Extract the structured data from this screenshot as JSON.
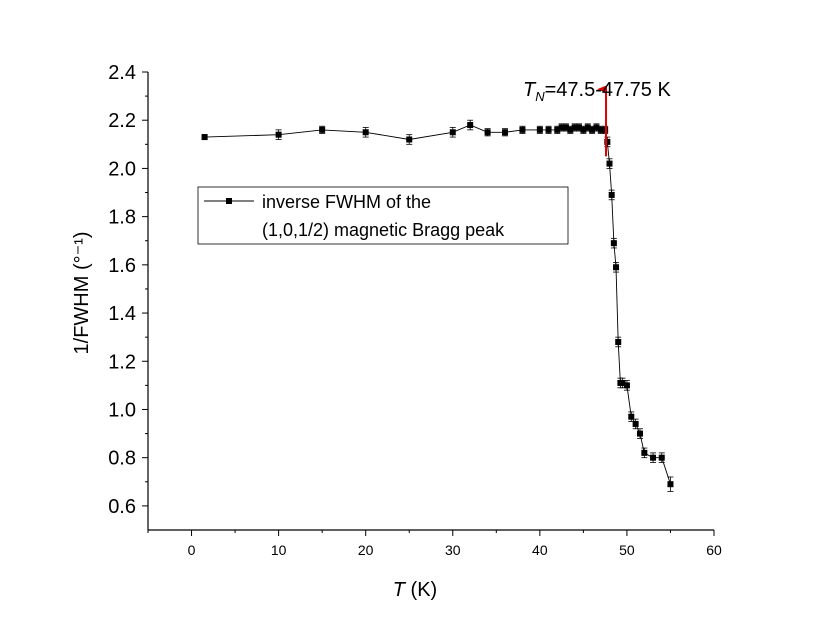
{
  "chart_data": {
    "type": "scatter",
    "xlabel": "T",
    "xlabel_unit": "(K)",
    "ylabel": "1/FWHM (°⁻¹)",
    "xlim": [
      -5,
      60
    ],
    "ylim": [
      0.5,
      2.4
    ],
    "xticks": [
      "0",
      "10",
      "20",
      "30",
      "40",
      "50",
      "60"
    ],
    "yticks": [
      "0.6",
      "0.8",
      "1.0",
      "1.2",
      "1.4",
      "1.6",
      "1.8",
      "2.0",
      "2.2",
      "2.4"
    ],
    "grid": false,
    "legend_position": "upper-left",
    "annotation": {
      "symbol": "T",
      "subscript": "N",
      "text": "=47.5-47.75 K",
      "arrow_color": "#e00000",
      "arrow_x": 47.6,
      "arrow_y_from": 2.05,
      "arrow_y_to": 2.37
    },
    "series": [
      {
        "name_line1": "inverse FWHM of the",
        "name_line2": "(1,0,1/2) magnetic Bragg peak",
        "color": "#000000",
        "marker": "square",
        "x": [
          1.5,
          10,
          15,
          20,
          25,
          30,
          32,
          34,
          36,
          38,
          40,
          41,
          42,
          42.5,
          43,
          43.5,
          44,
          44.5,
          45,
          45.5,
          46,
          46.5,
          47,
          47.5,
          47.75,
          48,
          48.25,
          48.5,
          48.75,
          49,
          49.25,
          49.5,
          50,
          50.5,
          51,
          51.5,
          52,
          53,
          54,
          55
        ],
        "y": [
          2.13,
          2.14,
          2.16,
          2.15,
          2.12,
          2.15,
          2.18,
          2.15,
          2.15,
          2.16,
          2.16,
          2.16,
          2.16,
          2.17,
          2.17,
          2.16,
          2.17,
          2.17,
          2.16,
          2.17,
          2.16,
          2.17,
          2.16,
          2.16,
          2.11,
          2.02,
          1.89,
          1.69,
          1.59,
          1.28,
          1.11,
          1.11,
          1.1,
          0.97,
          0.94,
          0.9,
          0.82,
          0.8,
          0.8,
          0.69
        ],
        "err": [
          0.01,
          0.02,
          0.015,
          0.02,
          0.02,
          0.02,
          0.02,
          0.015,
          0.015,
          0.015,
          0.015,
          0.015,
          0.015,
          0.015,
          0.015,
          0.015,
          0.015,
          0.015,
          0.015,
          0.015,
          0.015,
          0.015,
          0.015,
          0.015,
          0.02,
          0.02,
          0.02,
          0.02,
          0.02,
          0.02,
          0.02,
          0.02,
          0.02,
          0.02,
          0.02,
          0.02,
          0.02,
          0.02,
          0.02,
          0.03
        ]
      }
    ]
  }
}
